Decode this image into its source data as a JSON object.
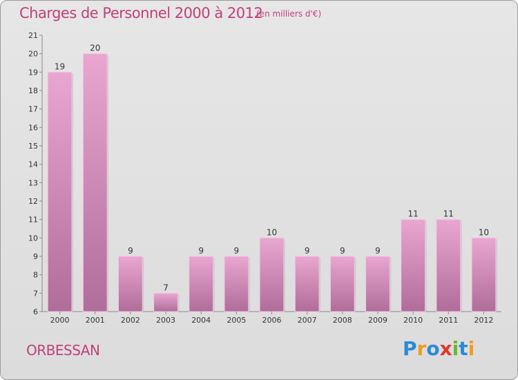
{
  "chart_data": {
    "type": "bar",
    "title": "Charges de Personnel 2000 à 2012",
    "subtitle": "(en milliers d'€)",
    "categories": [
      "2000",
      "2001",
      "2002",
      "2003",
      "2004",
      "2005",
      "2006",
      "2007",
      "2008",
      "2009",
      "2010",
      "2011",
      "2012"
    ],
    "values": [
      19,
      20,
      9,
      7,
      9,
      9,
      10,
      9,
      9,
      9,
      11,
      11,
      10
    ],
    "ylim": [
      6,
      21
    ],
    "yticks": [
      6,
      7,
      8,
      9,
      10,
      11,
      12,
      13,
      14,
      15,
      16,
      17,
      18,
      19,
      20,
      21
    ],
    "xlabel": "",
    "ylabel": "",
    "grid": false,
    "bar_color": "#d98fb9"
  },
  "place": "ORBESSAN",
  "logo": {
    "letters": [
      {
        "ch": "P",
        "color": "#2a8bd6"
      },
      {
        "ch": "r",
        "color": "#f29a1f"
      },
      {
        "ch": "o",
        "color": "#2a8bd6"
      },
      {
        "ch": "x",
        "color": "#e2362e"
      },
      {
        "ch": "i",
        "color": "#6ab82e"
      },
      {
        "ch": "t",
        "color": "#2a8bd6"
      },
      {
        "ch": "i",
        "color": "#f29a1f"
      }
    ]
  }
}
